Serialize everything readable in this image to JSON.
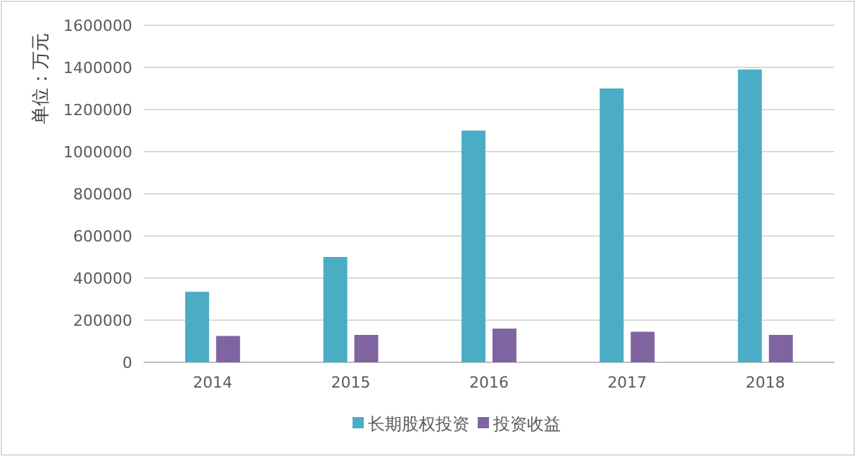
{
  "chart_data": {
    "type": "bar",
    "ylabel": "单位：万元",
    "categories": [
      "2014",
      "2015",
      "2016",
      "2017",
      "2018"
    ],
    "series": [
      {
        "name": "长期股权投资",
        "color": "#4bacc6",
        "values": [
          335000,
          500000,
          1100000,
          1300000,
          1390000
        ]
      },
      {
        "name": "投资收益",
        "color": "#8064a2",
        "values": [
          125000,
          130000,
          160000,
          145000,
          130000
        ]
      }
    ],
    "ylim": [
      0,
      1600000
    ],
    "yticks": [
      0,
      200000,
      400000,
      600000,
      800000,
      1000000,
      1200000,
      1400000,
      1600000
    ],
    "grid": "y",
    "legend": "bottom"
  }
}
